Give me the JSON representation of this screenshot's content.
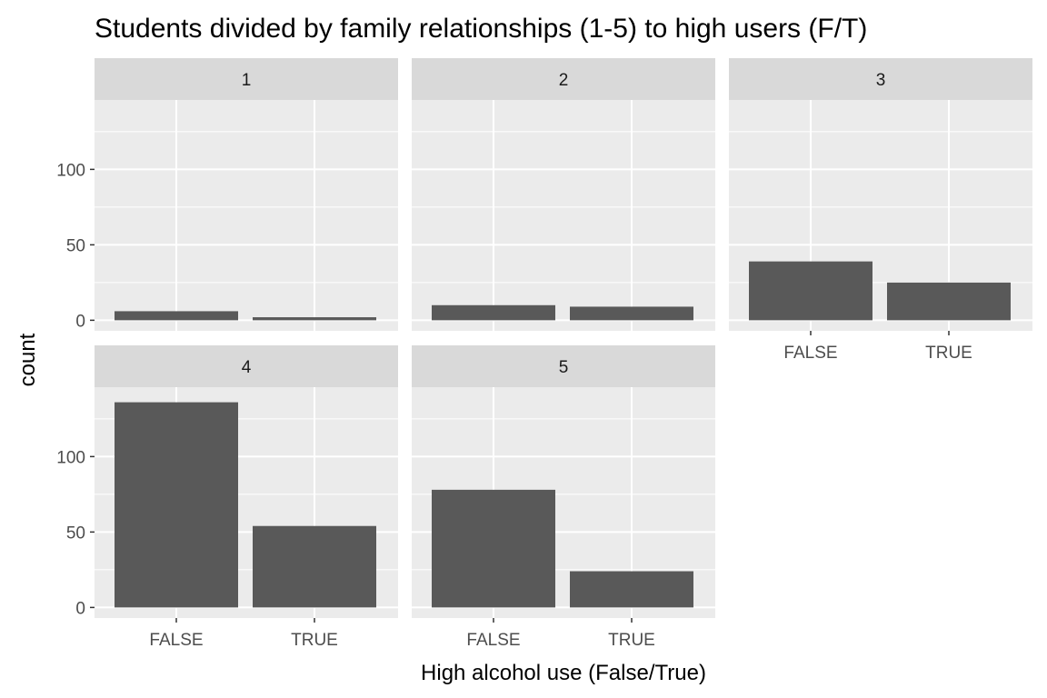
{
  "chart_data": {
    "type": "bar",
    "title": "Students divided by family relationships (1-5) to high users (F/T)",
    "xlabel": "High alcohol use (False/True)",
    "ylabel": "count",
    "categories": [
      "FALSE",
      "TRUE"
    ],
    "y_ticks": [
      0,
      50,
      100
    ],
    "ylim": [
      -7,
      146
    ],
    "grid": true,
    "facets": [
      {
        "label": "1",
        "values": [
          6,
          2
        ]
      },
      {
        "label": "2",
        "values": [
          10,
          9
        ]
      },
      {
        "label": "3",
        "values": [
          39,
          25
        ]
      },
      {
        "label": "4",
        "values": [
          136,
          54
        ]
      },
      {
        "label": "5",
        "values": [
          78,
          24
        ]
      }
    ],
    "colors": {
      "bar": "#595959",
      "panel": "#ebebeb",
      "strip": "#d9d9d9",
      "grid": "#ffffff",
      "tick_text": "#4d4d4d",
      "tick_mark": "#333333"
    }
  }
}
